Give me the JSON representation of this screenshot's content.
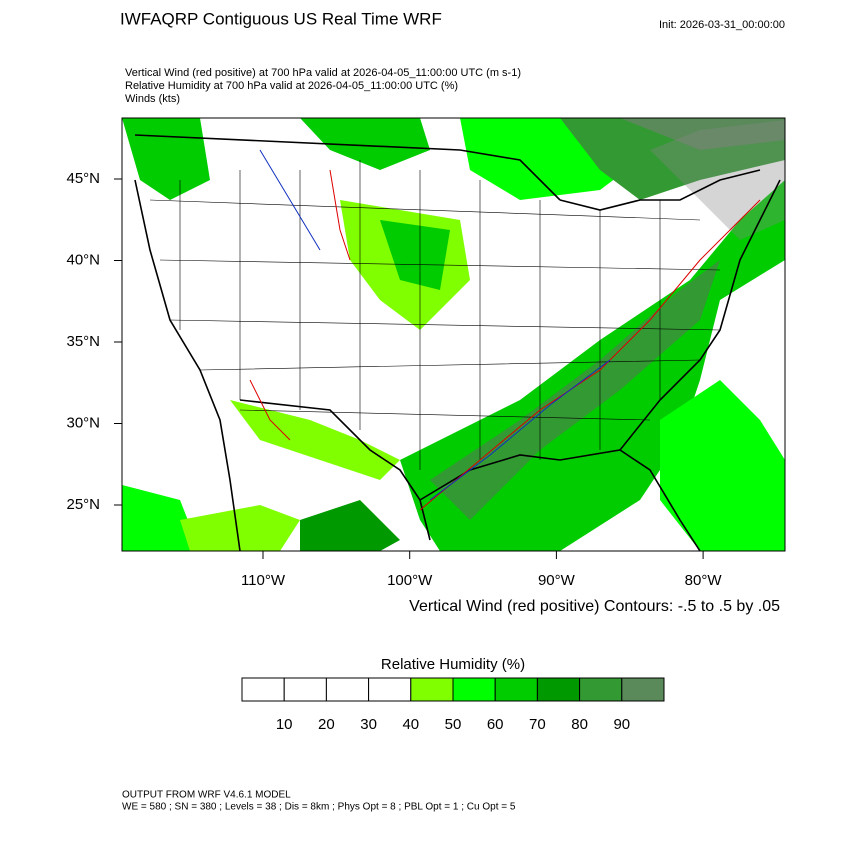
{
  "title": "IWFAQRP Contiguous US Real Time WRF",
  "init": "Init: 2026-03-31_00:00:00",
  "subtitles": [
    "Vertical Wind (red positive) at 700 hPa valid at 2026-04-05_11:00:00 UTC   (m s-1)",
    "Relative Humidity at 700 hPa valid at 2026-04-05_11:00:00 UTC   (%)",
    "Winds   (kts)"
  ],
  "lat_labels": [
    "45°N",
    "40°N",
    "35°N",
    "30°N",
    "25°N"
  ],
  "lon_labels": [
    "110°W",
    "100°W",
    "90°W",
    "80°W"
  ],
  "contour_note": "Vertical Wind (red positive) Contours: -.5 to .5 by .05",
  "colorbar": {
    "title": "Relative Humidity  (%)",
    "labels": [
      10,
      20,
      30,
      40,
      50,
      60,
      70,
      80,
      90
    ],
    "colors": [
      "#ffffff",
      "#ffffff",
      "#ffffff",
      "#ffffff",
      "#80ff00",
      "#00ff00",
      "#00cc00",
      "#009900",
      "#339933",
      "#5a8a5a"
    ]
  },
  "footer": [
    "OUTPUT FROM WRF V4.6.1 MODEL",
    "WE = 580 ; SN = 380 ; Levels = 38 ; Dis = 8km ; Phys Opt = 8 ; PBL Opt = 1 ; Cu Opt = 5"
  ]
}
